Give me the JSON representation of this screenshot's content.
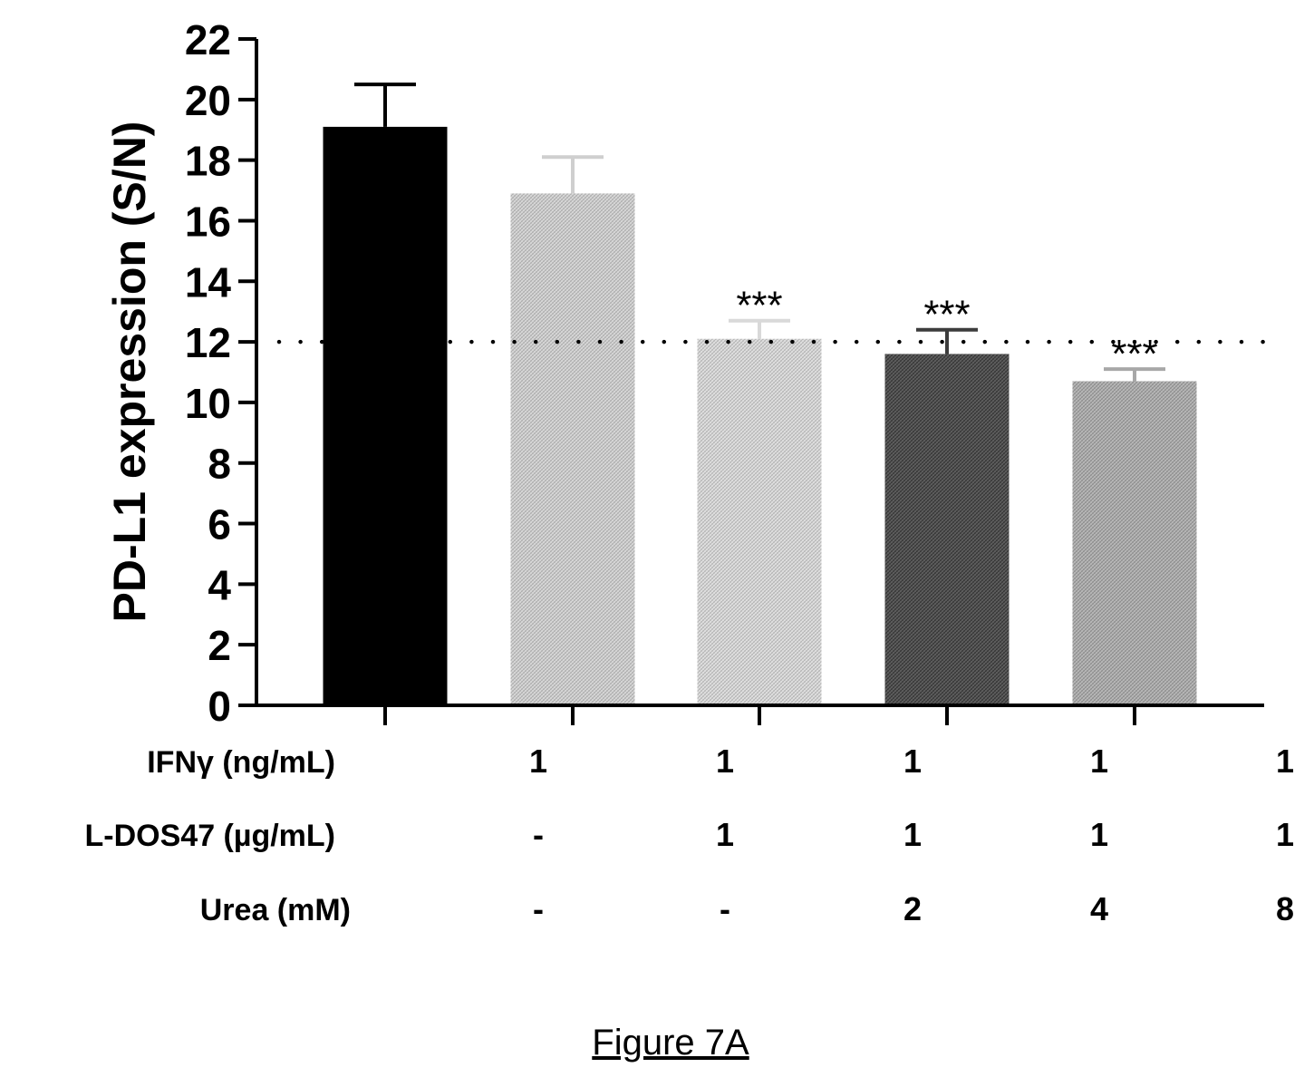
{
  "chart_data": {
    "type": "bar",
    "ylabel": "PD-L1 expression (S/N)",
    "ylim": [
      0,
      22
    ],
    "yticks": [
      0,
      2,
      4,
      6,
      8,
      10,
      12,
      14,
      16,
      18,
      20,
      22
    ],
    "reference_line": 12,
    "bars": [
      {
        "value": 19.1,
        "error": 1.4,
        "annotation": "",
        "color": "#000000"
      },
      {
        "value": 16.9,
        "error": 1.2,
        "annotation": "",
        "color": "#cfcfcf"
      },
      {
        "value": 12.1,
        "error": 0.6,
        "annotation": "***",
        "color": "#d9d9d9"
      },
      {
        "value": 11.6,
        "error": 0.8,
        "annotation": "***",
        "color": "#3c3c3c"
      },
      {
        "value": 10.7,
        "error": 0.4,
        "annotation": "***",
        "color": "#a8a8a8"
      }
    ],
    "condition_rows": [
      {
        "label": "IFNγ (ng/mL)",
        "values": [
          "1",
          "1",
          "1",
          "1",
          "1"
        ]
      },
      {
        "label": "L-DOS47 (µg/mL)",
        "values": [
          "-",
          "1",
          "1",
          "1",
          "1"
        ]
      },
      {
        "label": "Urea (mM)",
        "values": [
          "-",
          "-",
          "2",
          "4",
          "8"
        ]
      }
    ]
  },
  "caption": "Figure 7A"
}
